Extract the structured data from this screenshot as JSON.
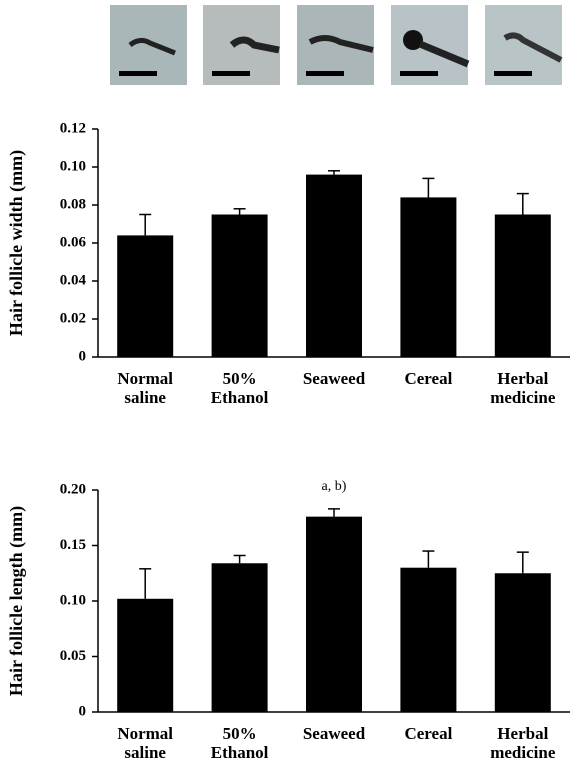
{
  "chart_data": [
    {
      "type": "bar",
      "y_label": "Hair follicle width (mm)",
      "categories": [
        "Normal\nsaline",
        "50%\nEthanol",
        "Seaweed",
        "Cereal",
        "Herbal\nmedicine"
      ],
      "values": [
        0.064,
        0.075,
        0.096,
        0.084,
        0.075
      ],
      "errors": [
        0.011,
        0.003,
        0.002,
        0.01,
        0.011
      ],
      "color": "#000000",
      "ylim": [
        0,
        0.12
      ],
      "yticks": [
        0,
        0.02,
        0.04,
        0.06,
        0.08,
        {
          "value": 0.1,
          "label": "0.10"
        },
        0.12
      ]
    },
    {
      "type": "bar",
      "y_label": "Hair follicle length (mm)",
      "categories": [
        "Normal\nsaline",
        "50%\nEthanol",
        "Seaweed",
        "Cereal",
        "Herbal\nmedicine"
      ],
      "values": [
        0.102,
        0.134,
        0.176,
        0.13,
        0.125
      ],
      "errors": [
        0.027,
        0.007,
        0.007,
        0.015,
        0.019
      ],
      "color": "#000000",
      "ylim": [
        0,
        0.2
      ],
      "yticks": [
        0,
        0.05,
        {
          "value": 0.1,
          "label": "0.10"
        },
        0.15,
        {
          "value": 0.2,
          "label": "0.20"
        }
      ],
      "annotations": [
        {
          "text": "a, b)",
          "x": "Seaweed"
        }
      ]
    }
  ]
}
